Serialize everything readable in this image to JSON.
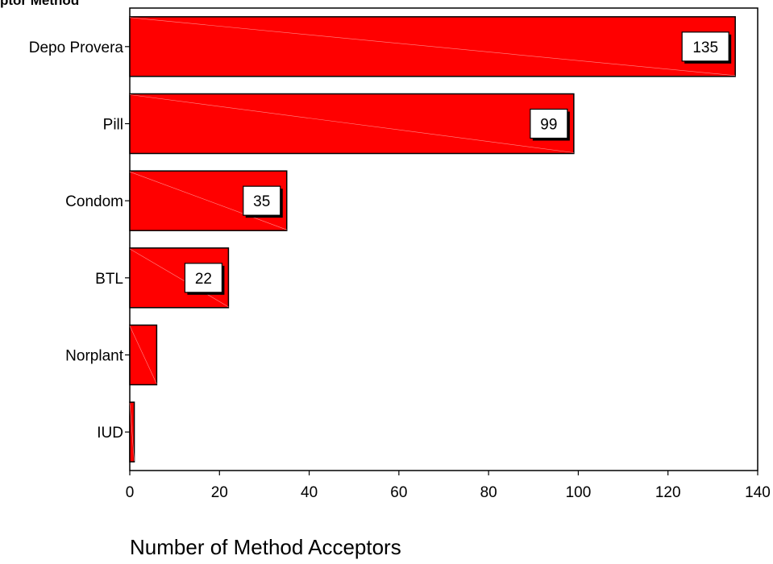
{
  "chart_data": {
    "type": "bar",
    "orientation": "horizontal",
    "title": "",
    "clipped_top_label": "ptor Method",
    "xlabel": "Number of Method Acceptors",
    "ylabel": "",
    "categories": [
      "Depo Provera",
      "Pill",
      "Condom",
      "BTL",
      "Norplant",
      "IUD"
    ],
    "values": [
      135,
      99,
      35,
      22,
      6,
      1
    ],
    "data_labels": [
      "135",
      "99",
      "35",
      "22",
      "",
      ""
    ],
    "xlim": [
      0,
      140
    ],
    "xticks": [
      0,
      20,
      40,
      60,
      80,
      100,
      120,
      140
    ],
    "bar_color": "#ff0000",
    "grid": false,
    "legend": "none"
  }
}
